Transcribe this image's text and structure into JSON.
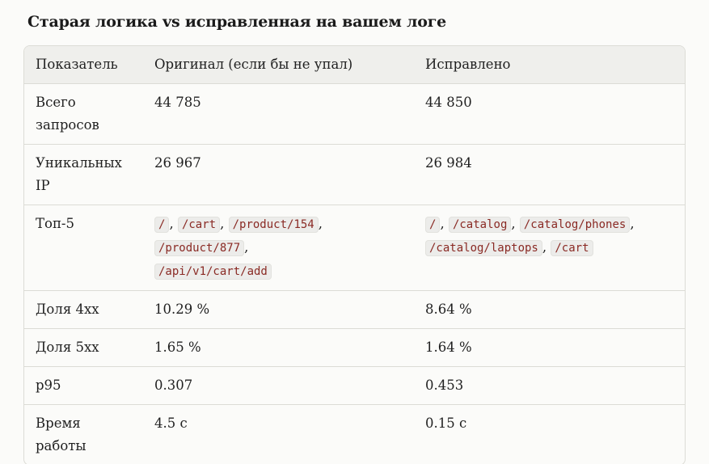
{
  "title": "Старая логика vs исправленная на вашем логе",
  "table": {
    "headers": [
      "Показатель",
      "Оригинал (если бы не упал)",
      "Исправлено"
    ],
    "rows": [
      {
        "metric": "Всего запросов",
        "original": "44 785",
        "fixed": "44 850"
      },
      {
        "metric": "Уникальных IP",
        "original": "26 967",
        "fixed": "26 984"
      },
      {
        "metric": "Топ-5",
        "original_paths": [
          "/",
          "/cart",
          "/product/154",
          "/product/877",
          "/api/v1/cart/add"
        ],
        "fixed_paths": [
          "/",
          "/catalog",
          "/catalog/phones",
          "/catalog/laptops",
          "/cart"
        ]
      },
      {
        "metric": "Доля 4xx",
        "original": "10.29 %",
        "fixed": "8.64 %"
      },
      {
        "metric": "Доля 5xx",
        "original": "1.65 %",
        "fixed": "1.64 %"
      },
      {
        "metric": "p95",
        "original": "0.307",
        "fixed": "0.453"
      },
      {
        "metric": "Время работы",
        "original": "4.5 с",
        "fixed": "0.15 с"
      }
    ]
  }
}
